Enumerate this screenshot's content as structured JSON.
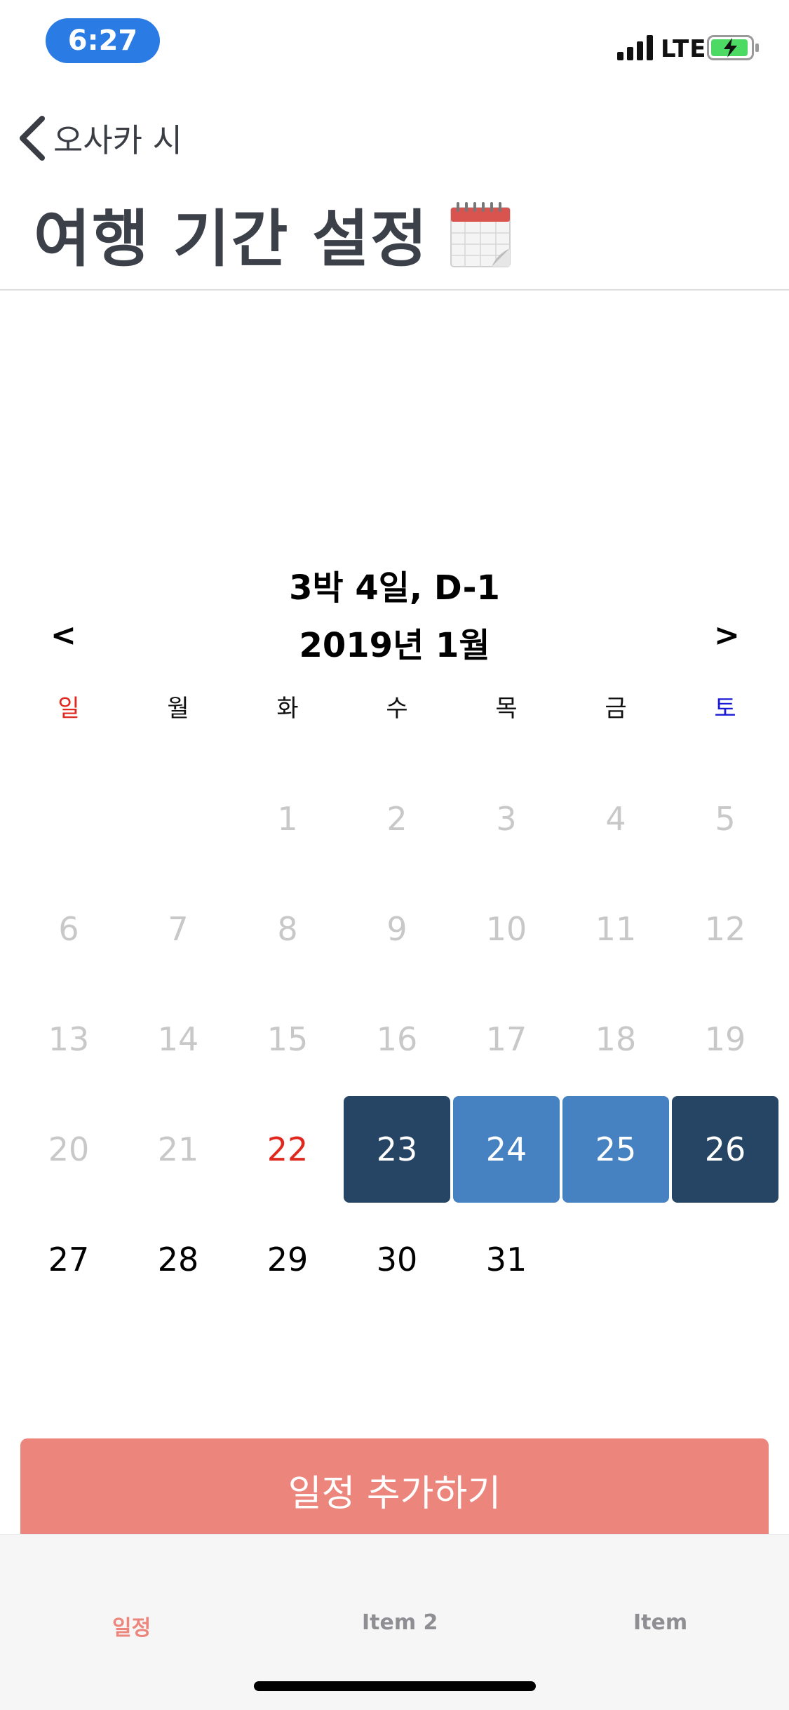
{
  "status_bar": {
    "time": "6:27",
    "network": "LTE",
    "icons": [
      "signal-icon",
      "battery-charging-icon"
    ],
    "pill_color": "#2b7be5"
  },
  "nav": {
    "back_label": "오사카 시",
    "title": "여행 기간 설정",
    "title_icon": "calendar-icon"
  },
  "summary": "3박 4일, D-1",
  "calendar": {
    "month_label": "2019년 1월",
    "prev_label": "<",
    "next_label": ">",
    "weekdays": [
      "일",
      "월",
      "화",
      "수",
      "목",
      "금",
      "토"
    ],
    "weeks": [
      [
        "",
        "",
        "1",
        "2",
        "3",
        "4",
        "5"
      ],
      [
        "6",
        "7",
        "8",
        "9",
        "10",
        "11",
        "12"
      ],
      [
        "13",
        "14",
        "15",
        "16",
        "17",
        "18",
        "19"
      ],
      [
        "20",
        "21",
        "22",
        "23",
        "24",
        "25",
        "26"
      ],
      [
        "27",
        "28",
        "29",
        "30",
        "31",
        "",
        ""
      ]
    ],
    "today": "22",
    "selected_start": "23",
    "selected_end": "26",
    "selected_range": [
      "23",
      "24",
      "25",
      "26"
    ],
    "colors": {
      "sunday": "#e0281e",
      "saturday": "#1a1ad6",
      "today": "#e0281e",
      "range_edge": "#264564",
      "range_middle": "#4682c1",
      "disabled": "#c8c8c8"
    }
  },
  "add_button_label": "일정 추가하기",
  "accent_color": "#ec857c",
  "tabs": [
    {
      "label": "일정",
      "active": true
    },
    {
      "label": "Item 2",
      "active": false
    },
    {
      "label": "Item",
      "active": false
    }
  ]
}
